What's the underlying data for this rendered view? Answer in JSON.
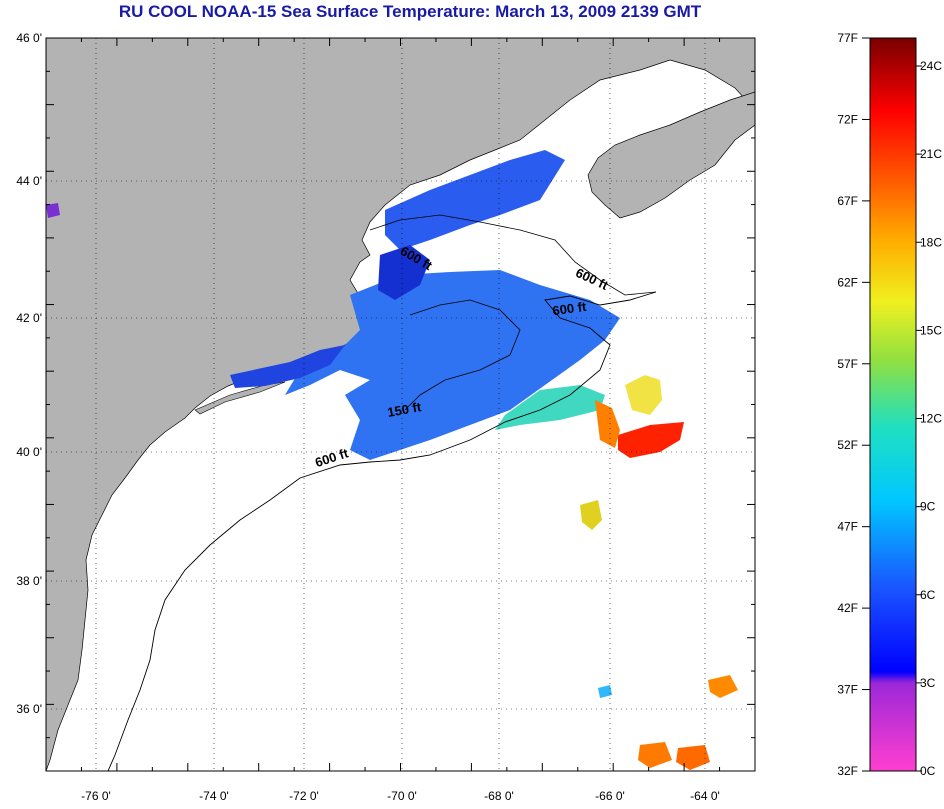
{
  "title": "RU COOL  NOAA-15  Sea Surface Temperature:  March 13, 2009 2139 GMT",
  "map": {
    "lon_labels": [
      "-76 0'",
      "-74 0'",
      "-72 0'",
      "-70 0'",
      "-68 0'",
      "-66 0'",
      "-64 0'"
    ],
    "lat_labels": [
      "46 0'",
      "44 0'",
      "42 0'",
      "40 0'",
      "38 0'",
      "36 0'"
    ],
    "contour_labels": [
      {
        "text": "600 ft",
        "angle": 30
      },
      {
        "text": "600 ft",
        "angle": 25
      },
      {
        "text": "600 ft",
        "angle": -8
      },
      {
        "text": "150 ft",
        "angle": -10
      },
      {
        "text": "600 ft",
        "angle": -18
      }
    ],
    "land_color": "#b3b3b3",
    "ocean_color": "#ffffff"
  },
  "colorbar": {
    "fahrenheit_labels": [
      "77F",
      "72F",
      "67F",
      "62F",
      "57F",
      "52F",
      "47F",
      "42F",
      "37F",
      "32F"
    ],
    "celsius_labels": [
      "24C",
      "21C",
      "18C",
      "15C",
      "12C",
      "9C",
      "6C",
      "3C",
      "0C"
    ]
  }
}
